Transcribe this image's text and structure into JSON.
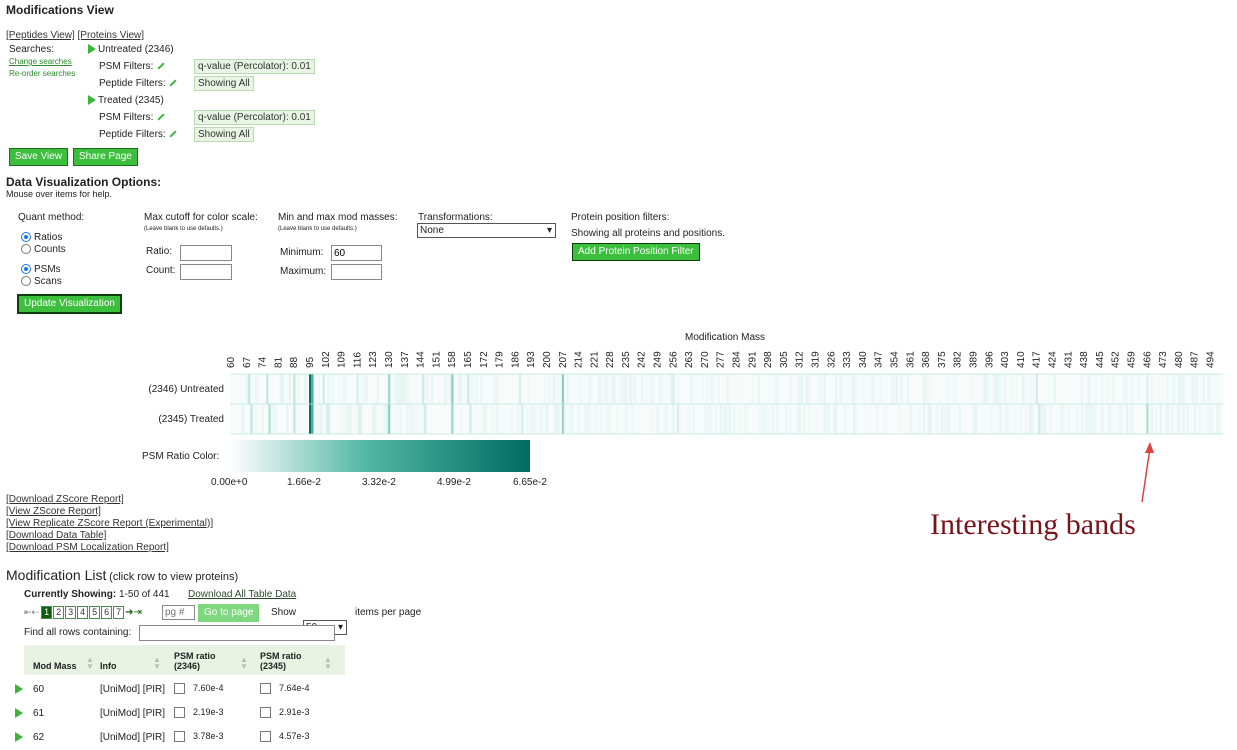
{
  "page_title": "Modifications View",
  "nav": {
    "peptides_view": "[Peptides View]",
    "proteins_view": "[Proteins View]"
  },
  "searches": {
    "label": "Searches:",
    "change_searches": "Change searches",
    "reorder_searches": "Re-order searches",
    "items": [
      {
        "name": "Untreated (2346)",
        "psm_label": "PSM Filters:",
        "psm_value": "q-value (Percolator): 0.01",
        "pep_label": "Peptide Filters:",
        "pep_value": "Showing All"
      },
      {
        "name": "Treated (2345)",
        "psm_label": "PSM Filters:",
        "psm_value": "q-value (Percolator): 0.01",
        "pep_label": "Peptide Filters:",
        "pep_value": "Showing All"
      }
    ]
  },
  "buttons": {
    "save_view": "Save View",
    "share_page": "Share Page",
    "update": "Update Visualization",
    "add_filter": "Add Protein Position Filter",
    "go_to_page": "Go to page"
  },
  "options": {
    "title": "Data Visualization Options:",
    "hint": "Mouse over items for help.",
    "quant_method": "Quant method:",
    "ratios": "Ratios",
    "counts": "Counts",
    "psms": "PSMs",
    "scans": "Scans",
    "max_cutoff": "Max cutoff for color scale:",
    "leave_blank": "(Leave blank to use defaults.)",
    "ratio_label": "Ratio:",
    "count_label": "Count:",
    "minmax": "Min and max mod masses:",
    "minimum_label": "Minimum:",
    "minimum_value": "60",
    "maximum_label": "Maximum:",
    "transformations": "Transformations:",
    "transform_value": "None",
    "pos_filters": "Protein position filters:",
    "pos_showing": "Showing all proteins and positions."
  },
  "heatmap": {
    "axis_title": "Modification Mass",
    "ticks": [
      "60",
      "67",
      "74",
      "81",
      "88",
      "95",
      "102",
      "109",
      "116",
      "123",
      "130",
      "137",
      "144",
      "151",
      "158",
      "165",
      "172",
      "179",
      "186",
      "193",
      "200",
      "207",
      "214",
      "221",
      "228",
      "235",
      "242",
      "249",
      "256",
      "263",
      "270",
      "277",
      "284",
      "291",
      "298",
      "305",
      "312",
      "319",
      "326",
      "333",
      "340",
      "347",
      "354",
      "361",
      "368",
      "375",
      "382",
      "389",
      "396",
      "403",
      "410",
      "417",
      "424",
      "431",
      "438",
      "445",
      "452",
      "459",
      "466",
      "473",
      "480",
      "487",
      "494"
    ],
    "rows": [
      "(2346) Untreated",
      "(2345) Treated"
    ],
    "legend_label": "PSM Ratio Color:",
    "legend_ticks": [
      "0.00e+0",
      "1.66e-2",
      "3.32e-2",
      "4.99e-2",
      "6.65e-2"
    ],
    "colors": {
      "low": "#ffffff",
      "high": "#006b63"
    },
    "bands_untreated": [
      {
        "mass": 95,
        "v": 0.95
      },
      {
        "mass": 96,
        "v": 0.5
      },
      {
        "mass": 130,
        "v": 0.25
      },
      {
        "mass": 158,
        "v": 0.3
      },
      {
        "mass": 207,
        "v": 0.3
      },
      {
        "mass": 68,
        "v": 0.15
      },
      {
        "mass": 76,
        "v": 0.15
      },
      {
        "mass": 88,
        "v": 0.15
      },
      {
        "mass": 101,
        "v": 0.12
      },
      {
        "mass": 116,
        "v": 0.1
      },
      {
        "mass": 145,
        "v": 0.12
      },
      {
        "mass": 165,
        "v": 0.12
      },
      {
        "mass": 188,
        "v": 0.1
      },
      {
        "mass": 256,
        "v": 0.1
      },
      {
        "mass": 417,
        "v": 0.12
      },
      {
        "mass": 466,
        "v": 0.08
      }
    ],
    "bands_treated": [
      {
        "mass": 95,
        "v": 0.95
      },
      {
        "mass": 96,
        "v": 0.5
      },
      {
        "mass": 130,
        "v": 0.3
      },
      {
        "mass": 158,
        "v": 0.25
      },
      {
        "mass": 207,
        "v": 0.25
      },
      {
        "mass": 69,
        "v": 0.15
      },
      {
        "mass": 77,
        "v": 0.2
      },
      {
        "mass": 88,
        "v": 0.15
      },
      {
        "mass": 103,
        "v": 0.12
      },
      {
        "mass": 117,
        "v": 0.1
      },
      {
        "mass": 146,
        "v": 0.12
      },
      {
        "mass": 166,
        "v": 0.12
      },
      {
        "mass": 189,
        "v": 0.1
      },
      {
        "mass": 258,
        "v": 0.1
      },
      {
        "mass": 418,
        "v": 0.12
      },
      {
        "mass": 466,
        "v": 0.2
      }
    ]
  },
  "reports": [
    "[Download ZScore Report]",
    "[View ZScore Report]",
    "[View Replicate ZScore Report (Experimental)]",
    "[Download Data Table]",
    "[Download PSM Localization Report]"
  ],
  "annotation": "Interesting bands",
  "mod_list": {
    "title": "Modification List",
    "subtitle": "(click row to view proteins)",
    "currently_showing_label": "Currently Showing:",
    "currently_showing_value": "1-50 of 441",
    "download_all": "Download All Table Data",
    "pages": [
      "1",
      "2",
      "3",
      "4",
      "5",
      "6",
      "7"
    ],
    "page_placeholder": "pg #",
    "show_label": "Show",
    "show_value": "50",
    "items_per_page": "items per page",
    "find_label": "Find all rows containing:",
    "columns": [
      "Mod Mass",
      "Info",
      "PSM ratio\n(2346)",
      "PSM ratio\n(2345)"
    ],
    "rows": [
      {
        "mass": "60",
        "info": "[UniMod] [PIR]",
        "r1": "7.60e-4",
        "r2": "7.64e-4"
      },
      {
        "mass": "61",
        "info": "[UniMod] [PIR]",
        "r1": "2.19e-3",
        "r2": "2.91e-3"
      },
      {
        "mass": "62",
        "info": "[UniMod] [PIR]",
        "r1": "3.78e-3",
        "r2": "4.57e-3"
      }
    ]
  }
}
